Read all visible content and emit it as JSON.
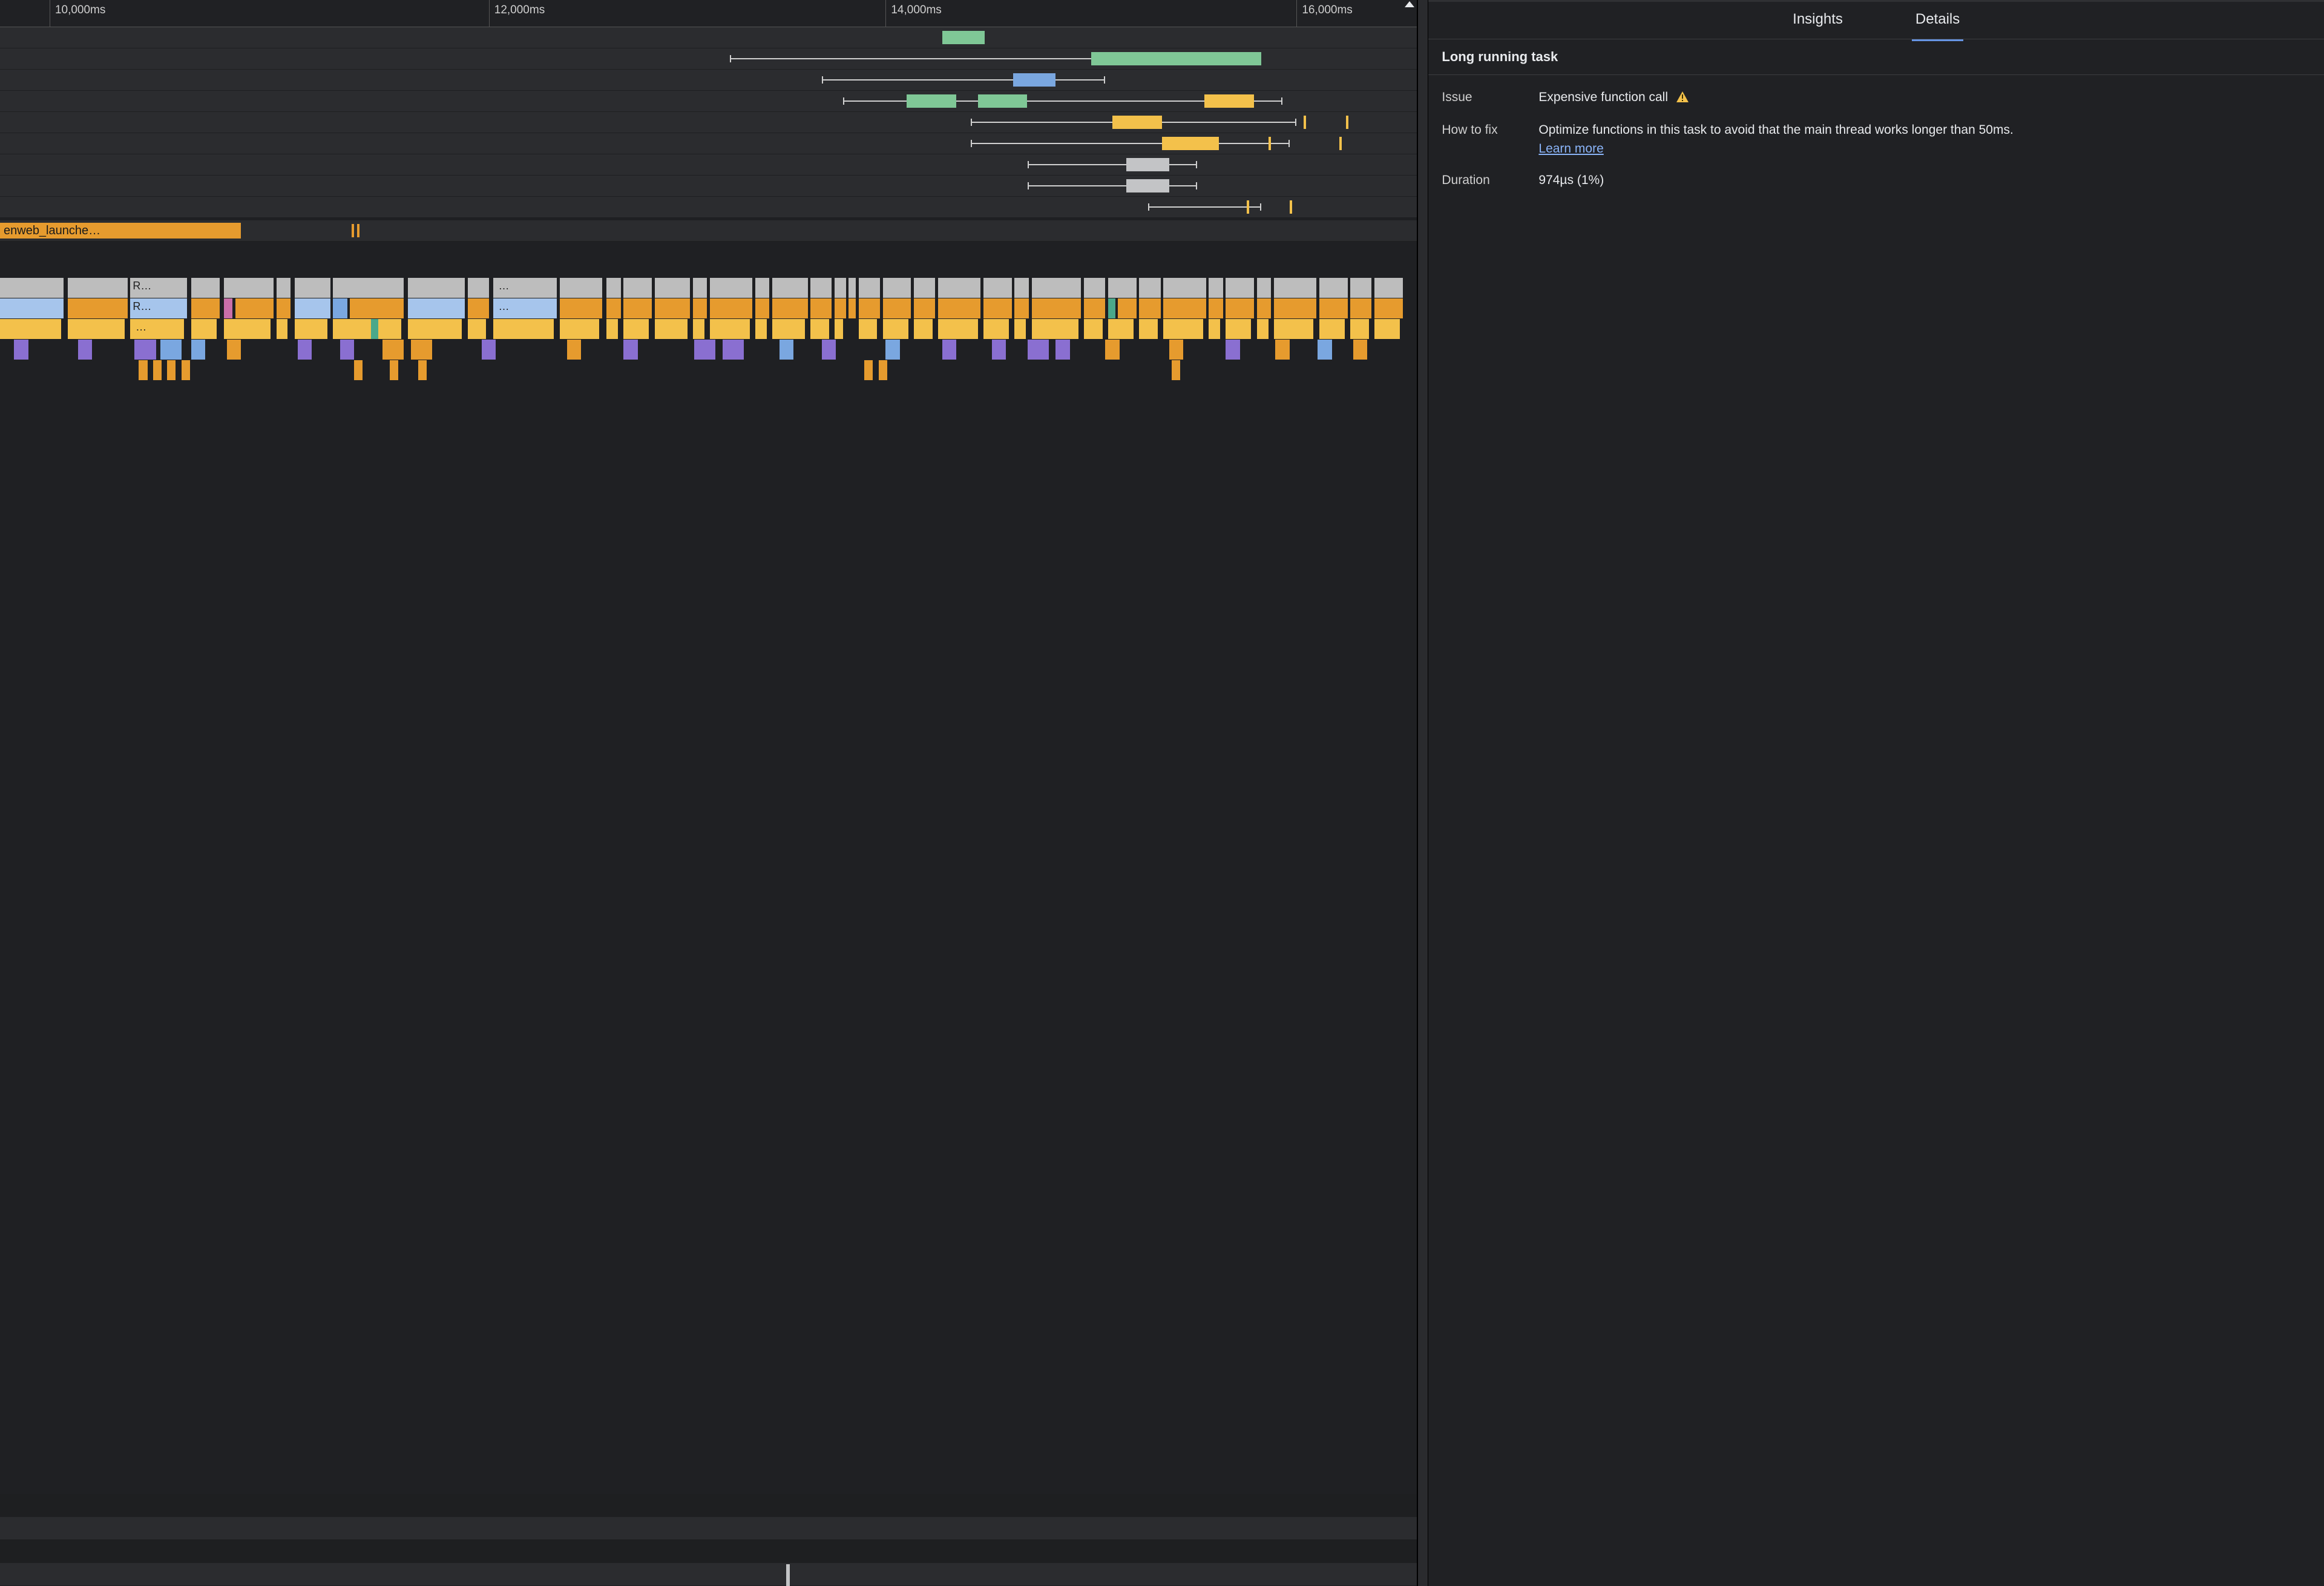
{
  "colors": {
    "bg": "#1e1f21",
    "track": "#2b2c2f",
    "green": "#7fc796",
    "blue": "#7aa7e0",
    "yellow": "#f3c14b",
    "orange": "#e69b2e",
    "grey": "#bdbdbd",
    "greyblock": "#c3c4c6",
    "purple": "#8a6fd1",
    "lightblue": "#a6c5ec",
    "darkorange": "#c97a12",
    "pink": "#c96fa9",
    "teal": "#4aa88a",
    "whisker": "#d0d0d0",
    "ruler_text": "#cfcfcf",
    "panel_bg": "#202124",
    "accent": "#6694e3",
    "link": "#8ab4f8",
    "text": "#e8eaed",
    "warn": "#f3c14b"
  },
  "ruler": {
    "ticks": [
      {
        "pos_pct": 3.5,
        "label": "10,000ms"
      },
      {
        "pos_pct": 34.5,
        "label": "12,000ms"
      },
      {
        "pos_pct": 62.5,
        "label": "14,000ms"
      },
      {
        "pos_pct": 91.5,
        "label": "16,000ms",
        "clip": true
      }
    ]
  },
  "timing_tracks": [
    {
      "whisker": null,
      "blocks": [
        {
          "l": 66.5,
          "w": 3.0,
          "c": "green"
        }
      ]
    },
    {
      "whisker": {
        "l": 51.5,
        "w": 37.5
      },
      "blocks": [
        {
          "l": 77.0,
          "w": 12.0,
          "c": "green"
        }
      ]
    },
    {
      "whisker": {
        "l": 58.0,
        "w": 20.0
      },
      "blocks": [
        {
          "l": 71.5,
          "w": 3.0,
          "c": "blue"
        }
      ]
    },
    {
      "whisker": {
        "l": 59.5,
        "w": 31.0
      },
      "blocks": [
        {
          "l": 64.0,
          "w": 3.5,
          "c": "green"
        },
        {
          "l": 69.0,
          "w": 3.5,
          "c": "green"
        },
        {
          "l": 85.0,
          "w": 3.5,
          "c": "yellow"
        }
      ]
    },
    {
      "whisker": {
        "l": 68.5,
        "w": 23.0
      },
      "blocks": [
        {
          "l": 78.5,
          "w": 3.5,
          "c": "yellow"
        }
      ],
      "ticks": [
        {
          "l": 92.0,
          "c": "yellow"
        },
        {
          "l": 95.0,
          "c": "yellow"
        }
      ]
    },
    {
      "whisker": {
        "l": 68.5,
        "w": 22.5
      },
      "blocks": [
        {
          "l": 82.0,
          "w": 4.0,
          "c": "yellow"
        }
      ],
      "ticks": [
        {
          "l": 89.5,
          "c": "yellow"
        },
        {
          "l": 94.5,
          "c": "yellow"
        }
      ]
    },
    {
      "whisker": {
        "l": 72.5,
        "w": 12.0
      },
      "blocks": [
        {
          "l": 79.5,
          "w": 3.0,
          "c": "greyblock"
        }
      ]
    },
    {
      "whisker": {
        "l": 72.5,
        "w": 12.0
      },
      "blocks": [
        {
          "l": 79.5,
          "w": 3.0,
          "c": "greyblock"
        }
      ]
    },
    {
      "whisker": {
        "l": 81.0,
        "w": 8.0
      },
      "blocks": [],
      "ticks": [
        {
          "l": 88.0,
          "c": "yellow"
        },
        {
          "l": 91.0,
          "c": "yellow"
        }
      ]
    }
  ],
  "network_track": {
    "label_block": {
      "l": 0,
      "w": 17.0,
      "text": "enweb_launche…"
    },
    "ticks": [
      {
        "l": 24.8,
        "c": "orange"
      },
      {
        "l": 25.2,
        "c": "orange"
      }
    ]
  },
  "flame": {
    "row0_labels": [
      {
        "l": 9.2,
        "w": 4.0,
        "text": "R…"
      },
      {
        "l": 35.0,
        "w": 4.0,
        "text": "…"
      }
    ],
    "row0": [
      {
        "l": 0,
        "w": 4.5,
        "c": "grey"
      },
      {
        "l": 4.8,
        "w": 4.2,
        "c": "grey"
      },
      {
        "l": 9.2,
        "w": 4.0,
        "c": "grey"
      },
      {
        "l": 13.5,
        "w": 2.0,
        "c": "grey"
      },
      {
        "l": 15.8,
        "w": 3.5,
        "c": "grey"
      },
      {
        "l": 19.5,
        "w": 1.0,
        "c": "grey"
      },
      {
        "l": 20.8,
        "w": 2.5,
        "c": "grey"
      },
      {
        "l": 23.5,
        "w": 5.0,
        "c": "grey"
      },
      {
        "l": 28.8,
        "w": 4.0,
        "c": "grey"
      },
      {
        "l": 33.0,
        "w": 1.5,
        "c": "grey"
      },
      {
        "l": 34.8,
        "w": 4.5,
        "c": "grey"
      },
      {
        "l": 39.5,
        "w": 3.0,
        "c": "grey"
      },
      {
        "l": 42.8,
        "w": 1.0,
        "c": "grey"
      },
      {
        "l": 44.0,
        "w": 2.0,
        "c": "grey"
      },
      {
        "l": 46.2,
        "w": 2.5,
        "c": "grey"
      },
      {
        "l": 48.9,
        "w": 1.0,
        "c": "grey"
      },
      {
        "l": 50.1,
        "w": 3.0,
        "c": "grey"
      },
      {
        "l": 53.3,
        "w": 1.0,
        "c": "grey"
      },
      {
        "l": 54.5,
        "w": 2.5,
        "c": "grey"
      },
      {
        "l": 57.2,
        "w": 1.5,
        "c": "grey"
      },
      {
        "l": 58.9,
        "w": 0.8,
        "c": "grey"
      },
      {
        "l": 59.9,
        "w": 0.5,
        "c": "grey"
      },
      {
        "l": 60.6,
        "w": 1.5,
        "c": "grey"
      },
      {
        "l": 62.3,
        "w": 2.0,
        "c": "grey"
      },
      {
        "l": 64.5,
        "w": 1.5,
        "c": "grey"
      },
      {
        "l": 66.2,
        "w": 3.0,
        "c": "grey"
      },
      {
        "l": 69.4,
        "w": 2.0,
        "c": "grey"
      },
      {
        "l": 71.6,
        "w": 1.0,
        "c": "grey"
      },
      {
        "l": 72.8,
        "w": 3.5,
        "c": "grey"
      },
      {
        "l": 76.5,
        "w": 1.5,
        "c": "grey"
      },
      {
        "l": 78.2,
        "w": 2.0,
        "c": "grey"
      },
      {
        "l": 80.4,
        "w": 1.5,
        "c": "grey"
      },
      {
        "l": 82.1,
        "w": 3.0,
        "c": "grey"
      },
      {
        "l": 85.3,
        "w": 1.0,
        "c": "grey"
      },
      {
        "l": 86.5,
        "w": 2.0,
        "c": "grey"
      },
      {
        "l": 88.7,
        "w": 1.0,
        "c": "grey"
      },
      {
        "l": 89.9,
        "w": 3.0,
        "c": "grey"
      },
      {
        "l": 93.1,
        "w": 2.0,
        "c": "grey"
      },
      {
        "l": 95.3,
        "w": 1.5,
        "c": "grey"
      },
      {
        "l": 97.0,
        "w": 2.0,
        "c": "grey"
      }
    ],
    "row1_labels": [
      {
        "l": 9.2,
        "w": 4.0,
        "text": "R…"
      },
      {
        "l": 35.0,
        "w": 4.0,
        "text": "…"
      }
    ],
    "row1": [
      {
        "l": 0,
        "w": 4.5,
        "c": "lightblue"
      },
      {
        "l": 4.8,
        "w": 4.2,
        "c": "orange"
      },
      {
        "l": 9.2,
        "w": 4.0,
        "c": "lightblue"
      },
      {
        "l": 13.5,
        "w": 2.0,
        "c": "orange"
      },
      {
        "l": 15.8,
        "w": 0.6,
        "c": "pink"
      },
      {
        "l": 16.6,
        "w": 2.7,
        "c": "orange"
      },
      {
        "l": 19.5,
        "w": 1.0,
        "c": "orange"
      },
      {
        "l": 20.8,
        "w": 2.5,
        "c": "lightblue"
      },
      {
        "l": 23.5,
        "w": 1.0,
        "c": "blue"
      },
      {
        "l": 24.7,
        "w": 3.8,
        "c": "orange"
      },
      {
        "l": 28.8,
        "w": 4.0,
        "c": "lightblue"
      },
      {
        "l": 33.0,
        "w": 1.5,
        "c": "orange"
      },
      {
        "l": 34.8,
        "w": 4.5,
        "c": "lightblue"
      },
      {
        "l": 39.5,
        "w": 3.0,
        "c": "orange"
      },
      {
        "l": 42.8,
        "w": 1.0,
        "c": "orange"
      },
      {
        "l": 44.0,
        "w": 2.0,
        "c": "orange"
      },
      {
        "l": 46.2,
        "w": 2.5,
        "c": "orange"
      },
      {
        "l": 48.9,
        "w": 1.0,
        "c": "orange"
      },
      {
        "l": 50.1,
        "w": 3.0,
        "c": "orange"
      },
      {
        "l": 53.3,
        "w": 1.0,
        "c": "orange"
      },
      {
        "l": 54.5,
        "w": 2.5,
        "c": "orange"
      },
      {
        "l": 57.2,
        "w": 1.5,
        "c": "orange"
      },
      {
        "l": 58.9,
        "w": 0.8,
        "c": "orange"
      },
      {
        "l": 59.9,
        "w": 0.5,
        "c": "orange"
      },
      {
        "l": 60.6,
        "w": 1.5,
        "c": "orange"
      },
      {
        "l": 62.3,
        "w": 2.0,
        "c": "orange"
      },
      {
        "l": 64.5,
        "w": 1.5,
        "c": "orange"
      },
      {
        "l": 66.2,
        "w": 3.0,
        "c": "orange"
      },
      {
        "l": 69.4,
        "w": 2.0,
        "c": "orange"
      },
      {
        "l": 71.6,
        "w": 1.0,
        "c": "orange"
      },
      {
        "l": 72.8,
        "w": 3.5,
        "c": "orange"
      },
      {
        "l": 76.5,
        "w": 1.5,
        "c": "orange"
      },
      {
        "l": 78.2,
        "w": 0.5,
        "c": "teal"
      },
      {
        "l": 78.9,
        "w": 1.3,
        "c": "orange"
      },
      {
        "l": 80.4,
        "w": 1.5,
        "c": "orange"
      },
      {
        "l": 82.1,
        "w": 3.0,
        "c": "orange"
      },
      {
        "l": 85.3,
        "w": 1.0,
        "c": "orange"
      },
      {
        "l": 86.5,
        "w": 2.0,
        "c": "orange"
      },
      {
        "l": 88.7,
        "w": 1.0,
        "c": "orange"
      },
      {
        "l": 89.9,
        "w": 3.0,
        "c": "orange"
      },
      {
        "l": 93.1,
        "w": 2.0,
        "c": "orange"
      },
      {
        "l": 95.3,
        "w": 1.5,
        "c": "orange"
      },
      {
        "l": 97.0,
        "w": 2.0,
        "c": "orange"
      }
    ],
    "row2_labels": [
      {
        "l": 9.4,
        "w": 3.6,
        "text": "…"
      }
    ],
    "row2": [
      {
        "l": 0,
        "w": 4.3,
        "c": "yellow"
      },
      {
        "l": 4.8,
        "w": 4.0,
        "c": "yellow"
      },
      {
        "l": 9.2,
        "w": 3.8,
        "c": "yellow"
      },
      {
        "l": 13.5,
        "w": 1.8,
        "c": "yellow"
      },
      {
        "l": 15.8,
        "w": 3.3,
        "c": "yellow"
      },
      {
        "l": 19.5,
        "w": 0.8,
        "c": "yellow"
      },
      {
        "l": 20.8,
        "w": 2.3,
        "c": "yellow"
      },
      {
        "l": 23.5,
        "w": 4.8,
        "c": "yellow"
      },
      {
        "l": 26.2,
        "w": 0.5,
        "c": "teal"
      },
      {
        "l": 28.8,
        "w": 3.8,
        "c": "yellow"
      },
      {
        "l": 33.0,
        "w": 1.3,
        "c": "yellow"
      },
      {
        "l": 34.8,
        "w": 4.3,
        "c": "yellow"
      },
      {
        "l": 39.5,
        "w": 2.8,
        "c": "yellow"
      },
      {
        "l": 42.8,
        "w": 0.8,
        "c": "yellow"
      },
      {
        "l": 44.0,
        "w": 1.8,
        "c": "yellow"
      },
      {
        "l": 46.2,
        "w": 2.3,
        "c": "yellow"
      },
      {
        "l": 48.9,
        "w": 0.8,
        "c": "yellow"
      },
      {
        "l": 50.1,
        "w": 2.8,
        "c": "yellow"
      },
      {
        "l": 53.3,
        "w": 0.8,
        "c": "yellow"
      },
      {
        "l": 54.5,
        "w": 2.3,
        "c": "yellow"
      },
      {
        "l": 57.2,
        "w": 1.3,
        "c": "yellow"
      },
      {
        "l": 58.9,
        "w": 0.6,
        "c": "yellow"
      },
      {
        "l": 60.6,
        "w": 1.3,
        "c": "yellow"
      },
      {
        "l": 62.3,
        "w": 1.8,
        "c": "yellow"
      },
      {
        "l": 64.5,
        "w": 1.3,
        "c": "yellow"
      },
      {
        "l": 66.2,
        "w": 2.8,
        "c": "yellow"
      },
      {
        "l": 69.4,
        "w": 1.8,
        "c": "yellow"
      },
      {
        "l": 71.6,
        "w": 0.8,
        "c": "yellow"
      },
      {
        "l": 72.8,
        "w": 3.3,
        "c": "yellow"
      },
      {
        "l": 76.5,
        "w": 1.3,
        "c": "yellow"
      },
      {
        "l": 78.2,
        "w": 1.8,
        "c": "yellow"
      },
      {
        "l": 80.4,
        "w": 1.3,
        "c": "yellow"
      },
      {
        "l": 82.1,
        "w": 2.8,
        "c": "yellow"
      },
      {
        "l": 85.3,
        "w": 0.8,
        "c": "yellow"
      },
      {
        "l": 86.5,
        "w": 1.8,
        "c": "yellow"
      },
      {
        "l": 88.7,
        "w": 0.8,
        "c": "yellow"
      },
      {
        "l": 89.9,
        "w": 2.8,
        "c": "yellow"
      },
      {
        "l": 93.1,
        "w": 1.8,
        "c": "yellow"
      },
      {
        "l": 95.3,
        "w": 1.3,
        "c": "yellow"
      },
      {
        "l": 97.0,
        "w": 1.8,
        "c": "yellow"
      }
    ],
    "row3": [
      {
        "l": 1.0,
        "w": 1.0,
        "c": "purple"
      },
      {
        "l": 5.5,
        "w": 1.0,
        "c": "purple"
      },
      {
        "l": 9.5,
        "w": 1.5,
        "c": "purple"
      },
      {
        "l": 11.3,
        "w": 1.5,
        "c": "blue"
      },
      {
        "l": 13.5,
        "w": 1.0,
        "c": "blue"
      },
      {
        "l": 16.0,
        "w": 1.0,
        "c": "orange"
      },
      {
        "l": 21.0,
        "w": 1.0,
        "c": "purple"
      },
      {
        "l": 24.0,
        "w": 1.0,
        "c": "purple"
      },
      {
        "l": 27.0,
        "w": 1.5,
        "c": "orange"
      },
      {
        "l": 29.0,
        "w": 1.5,
        "c": "orange"
      },
      {
        "l": 34.0,
        "w": 1.0,
        "c": "purple"
      },
      {
        "l": 40.0,
        "w": 1.0,
        "c": "orange"
      },
      {
        "l": 44.0,
        "w": 1.0,
        "c": "purple"
      },
      {
        "l": 49.0,
        "w": 1.5,
        "c": "purple"
      },
      {
        "l": 51.0,
        "w": 1.5,
        "c": "purple"
      },
      {
        "l": 55.0,
        "w": 1.0,
        "c": "blue"
      },
      {
        "l": 58.0,
        "w": 1.0,
        "c": "purple"
      },
      {
        "l": 62.5,
        "w": 1.0,
        "c": "blue"
      },
      {
        "l": 66.5,
        "w": 1.0,
        "c": "purple"
      },
      {
        "l": 70.0,
        "w": 1.0,
        "c": "purple"
      },
      {
        "l": 72.5,
        "w": 1.5,
        "c": "purple"
      },
      {
        "l": 74.5,
        "w": 1.0,
        "c": "purple"
      },
      {
        "l": 78.0,
        "w": 1.0,
        "c": "orange"
      },
      {
        "l": 82.5,
        "w": 1.0,
        "c": "orange"
      },
      {
        "l": 86.5,
        "w": 1.0,
        "c": "purple"
      },
      {
        "l": 90.0,
        "w": 1.0,
        "c": "orange"
      },
      {
        "l": 93.0,
        "w": 1.0,
        "c": "blue"
      },
      {
        "l": 95.5,
        "w": 1.0,
        "c": "orange"
      }
    ],
    "row4": [
      {
        "l": 9.8,
        "w": 0.6,
        "c": "orange"
      },
      {
        "l": 10.8,
        "w": 0.6,
        "c": "orange"
      },
      {
        "l": 11.8,
        "w": 0.6,
        "c": "orange"
      },
      {
        "l": 12.8,
        "w": 0.6,
        "c": "orange"
      },
      {
        "l": 25.0,
        "w": 0.6,
        "c": "orange"
      },
      {
        "l": 27.5,
        "w": 0.6,
        "c": "orange"
      },
      {
        "l": 29.5,
        "w": 0.6,
        "c": "orange"
      },
      {
        "l": 61.0,
        "w": 0.6,
        "c": "orange"
      },
      {
        "l": 62.0,
        "w": 0.6,
        "c": "orange"
      },
      {
        "l": 82.7,
        "w": 0.6,
        "c": "orange"
      }
    ]
  },
  "bottom_marker": {
    "l": 55.5,
    "c": "greyblock"
  },
  "details": {
    "tabs": {
      "insights": "Insights",
      "details": "Details",
      "active": "details"
    },
    "title": "Long running task",
    "issue_label": "Issue",
    "issue_value": "Expensive function call",
    "howto_label": "How to fix",
    "howto_value": "Optimize functions in this task to avoid that the main thread works longer than 50ms.",
    "learn_more": "Learn more",
    "duration_label": "Duration",
    "duration_value": "974µs (1%)"
  }
}
